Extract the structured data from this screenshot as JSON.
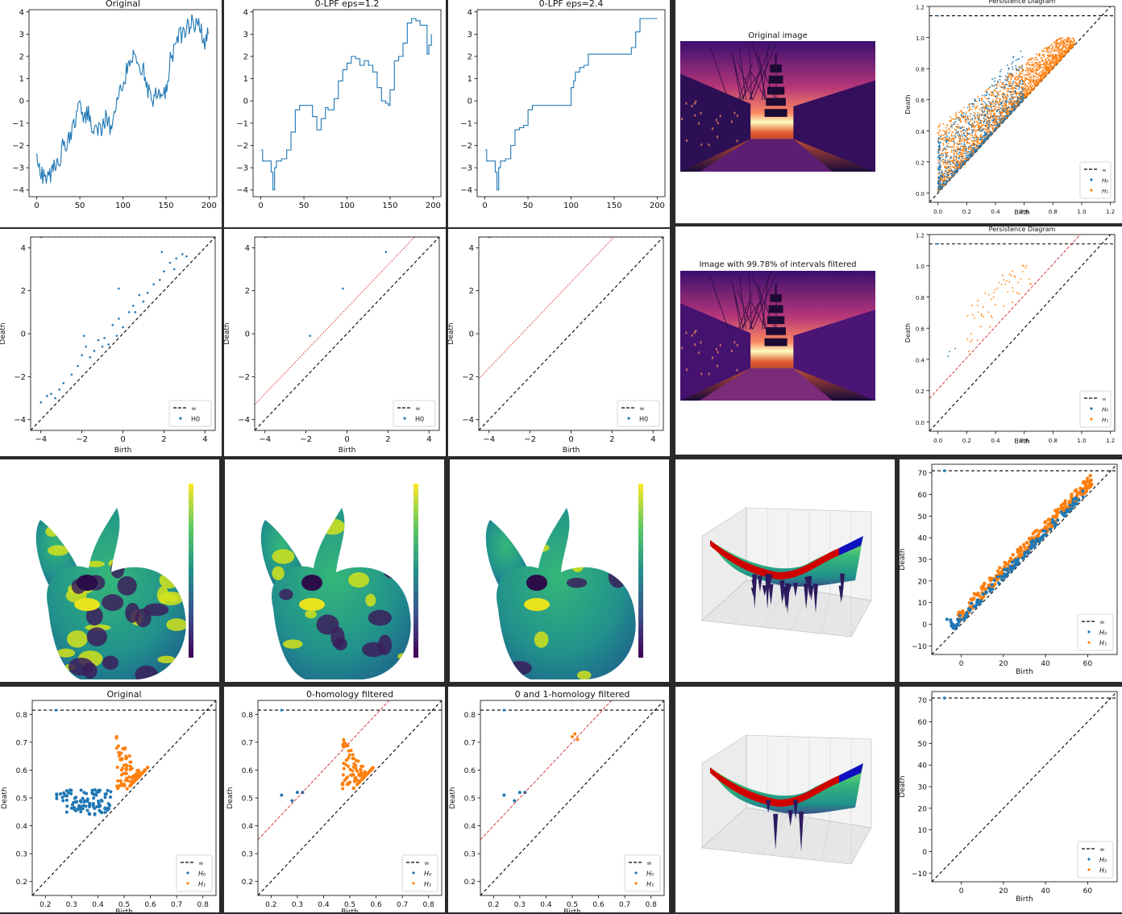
{
  "chart_data": [
    {
      "id": "ts-original",
      "type": "line",
      "title": "Original",
      "xlim": [
        -9,
        209
      ],
      "ylim": [
        -4.3,
        4.1
      ],
      "xticks": [
        "0",
        "50",
        "100",
        "150",
        "200"
      ],
      "yticks": [
        "4",
        "3",
        "2",
        "1",
        "0",
        "−1",
        "−2",
        "−3",
        "−4"
      ],
      "series": [
        {
          "x": [
            0,
            5,
            10,
            15,
            20,
            25,
            30,
            35,
            40,
            45,
            50,
            55,
            60,
            65,
            70,
            75,
            80,
            85,
            90,
            95,
            100,
            105,
            110,
            115,
            120,
            125,
            130,
            135,
            140,
            145,
            150,
            155,
            160,
            165,
            170,
            175,
            180,
            185,
            190,
            195,
            199
          ],
          "y": [
            -2.5,
            -3.2,
            -3.6,
            -3.4,
            -3.0,
            -2.8,
            -2.1,
            -1.9,
            -1.6,
            -0.9,
            -0.3,
            -0.8,
            -0.6,
            -1.1,
            -1.2,
            -1.4,
            -0.8,
            -1.2,
            -0.7,
            0.4,
            0.8,
            1.5,
            1.9,
            2.1,
            1.6,
            1.2,
            0.4,
            0.1,
            0.3,
            -0.2,
            0.5,
            1.8,
            2.2,
            2.8,
            3.1,
            3.3,
            3.6,
            3.5,
            3.4,
            2.6,
            3.0
          ]
        }
      ]
    },
    {
      "id": "ts-lpf12",
      "type": "line",
      "title": "0-LPF eps=1.2",
      "xlim": [
        -9,
        209
      ],
      "ylim": [
        -4.3,
        4.1
      ],
      "xticks": [
        "0",
        "50",
        "100",
        "150",
        "200"
      ],
      "yticks": [
        "4",
        "3",
        "2",
        "1",
        "0",
        "−1",
        "−2",
        "−3",
        "−4"
      ],
      "series": [
        {
          "x": [
            0,
            2,
            3,
            10,
            12,
            14,
            16,
            18,
            24,
            26,
            30,
            35,
            40,
            45,
            50,
            55,
            60,
            65,
            70,
            75,
            78,
            80,
            85,
            90,
            95,
            100,
            105,
            110,
            115,
            120,
            125,
            130,
            135,
            140,
            145,
            148,
            150,
            155,
            160,
            165,
            170,
            175,
            180,
            185,
            190,
            193,
            195,
            198
          ],
          "y": [
            -2.2,
            -2.7,
            -2.7,
            -2.7,
            -3.2,
            -4.0,
            -3.0,
            -2.7,
            -2.6,
            -2.6,
            -2.2,
            -1.4,
            -0.4,
            -0.2,
            -0.2,
            -0.2,
            -0.7,
            -1.3,
            -0.8,
            -0.3,
            -0.4,
            -0.4,
            0.1,
            0.9,
            1.4,
            1.7,
            2.0,
            1.9,
            1.6,
            1.8,
            1.6,
            1.3,
            0.6,
            0.0,
            -0.1,
            -0.2,
            0.5,
            1.8,
            2.0,
            2.6,
            3.5,
            3.7,
            3.6,
            3.4,
            3.4,
            2.1,
            2.5,
            3.0
          ]
        }
      ]
    },
    {
      "id": "ts-lpf24",
      "type": "line",
      "title": "0-LPF eps=2.4",
      "xlim": [
        -9,
        209
      ],
      "ylim": [
        -4.3,
        4.1
      ],
      "xticks": [
        "0",
        "50",
        "100",
        "150",
        "200"
      ],
      "yticks": [
        "4",
        "3",
        "2",
        "1",
        "0",
        "−1",
        "−2",
        "−3",
        "−4"
      ],
      "series": [
        {
          "x": [
            0,
            2,
            3,
            10,
            12,
            14,
            16,
            18,
            24,
            26,
            30,
            35,
            40,
            45,
            48,
            50,
            55,
            60,
            65,
            70,
            75,
            80,
            85,
            90,
            95,
            100,
            103,
            105,
            110,
            115,
            120,
            125,
            130,
            135,
            140,
            150,
            160,
            165,
            168,
            170,
            175,
            180,
            185,
            190,
            195,
            200
          ],
          "y": [
            -2.2,
            -2.7,
            -2.7,
            -2.7,
            -3.2,
            -4.0,
            -3.0,
            -2.7,
            -2.6,
            -2.6,
            -2.0,
            -1.3,
            -1.2,
            -1.1,
            -1.1,
            -0.4,
            -0.2,
            -0.2,
            -0.2,
            -0.2,
            -0.2,
            -0.2,
            -0.2,
            -0.2,
            -0.2,
            0.6,
            0.9,
            1.3,
            1.5,
            1.6,
            2.1,
            2.1,
            2.1,
            2.1,
            2.1,
            2.1,
            2.1,
            2.1,
            2.1,
            2.4,
            3.1,
            3.7,
            3.7,
            3.7,
            3.7,
            3.7
          ]
        }
      ]
    },
    {
      "id": "pd-original",
      "type": "scatter",
      "xlabel": "Birth",
      "ylabel": "Death",
      "xlim": [
        -4.5,
        4.5
      ],
      "ylim": [
        -4.5,
        4.5
      ],
      "xticks": [
        "−4",
        "−2",
        "0",
        "2",
        "4"
      ],
      "yticks": [
        "4",
        "2",
        "0",
        "−2",
        "−4"
      ],
      "legend": [
        "∞",
        "H0"
      ],
      "infinity": 4.5,
      "series": [
        {
          "name": "H0",
          "x": [
            -4.0,
            -3.7,
            -3.5,
            -3.3,
            -3.1,
            -2.9,
            -2.5,
            -2.2,
            -2.0,
            -1.8,
            -1.6,
            -1.4,
            -1.2,
            -1.0,
            -0.9,
            -0.7,
            -0.5,
            -0.3,
            -0.2,
            0.0,
            0.3,
            0.5,
            0.8,
            1.0,
            1.2,
            1.5,
            1.8,
            2.0,
            2.3,
            2.6,
            2.9,
            3.1,
            -1.9,
            -0.2,
            0.6,
            1.9,
            2.5
          ],
          "y": [
            -3.2,
            -2.9,
            -2.8,
            -3.0,
            -2.6,
            -2.3,
            -1.9,
            -1.5,
            -1.0,
            -0.6,
            -1.1,
            -0.8,
            -0.3,
            -0.6,
            -0.2,
            -0.5,
            0.4,
            -0.1,
            0.7,
            0.3,
            1.0,
            1.3,
            1.8,
            1.5,
            1.9,
            2.3,
            2.5,
            2.9,
            3.3,
            3.5,
            3.7,
            3.6,
            -0.1,
            2.1,
            1.0,
            3.8,
            3.0
          ]
        }
      ]
    },
    {
      "id": "pd-lpf12",
      "type": "scatter",
      "xlabel": "Birth",
      "ylabel": "Death",
      "xlim": [
        -4.5,
        4.5
      ],
      "ylim": [
        -4.5,
        4.5
      ],
      "xticks": [
        "−4",
        "−2",
        "0",
        "2",
        "4"
      ],
      "yticks": [
        "4",
        "2",
        "0",
        "−2",
        "−4"
      ],
      "legend": [
        "∞",
        "H0"
      ],
      "infinity": 4.5,
      "eps": 1.2,
      "series": [
        {
          "name": "H0",
          "x": [
            -1.8,
            -0.2,
            1.9
          ],
          "y": [
            -0.1,
            2.1,
            3.8
          ]
        }
      ]
    },
    {
      "id": "pd-lpf24",
      "type": "scatter",
      "xlabel": "Birth",
      "ylabel": "Death",
      "xlim": [
        -4.5,
        4.5
      ],
      "ylim": [
        -4.5,
        4.5
      ],
      "xticks": [
        "−4",
        "−2",
        "0",
        "2",
        "4"
      ],
      "yticks": [
        "4",
        "2",
        "0",
        "−2",
        "−4"
      ],
      "legend": [
        "∞",
        "H0"
      ],
      "infinity": 4.5,
      "eps": 2.4,
      "series": [
        {
          "name": "H0",
          "x": [],
          "y": []
        }
      ]
    },
    {
      "id": "img-pd-original",
      "type": "scatter",
      "title": "Persistence Diagram",
      "xlabel": "Birth",
      "ylabel": "Death",
      "xlim": [
        -0.06,
        1.23
      ],
      "ylim": [
        -0.06,
        1.2
      ],
      "xticks": [
        "0.0",
        "0.2",
        "0.4",
        "0.6",
        "0.8",
        "1.0",
        "1.2"
      ],
      "yticks": [
        "1.2",
        "1.0",
        "0.8",
        "0.6",
        "0.4",
        "0.2",
        "0.0"
      ],
      "legend": [
        "∞",
        "H₀",
        "H₁"
      ],
      "infinity": 1.14
    },
    {
      "id": "img-pd-filtered",
      "type": "scatter",
      "title": "Persistence Diagram",
      "xlabel": "Birth",
      "ylabel": "Death",
      "xlim": [
        -0.06,
        1.23
      ],
      "ylim": [
        -0.06,
        1.2
      ],
      "xticks": [
        "0.0",
        "0.2",
        "0.4",
        "0.6",
        "0.8",
        "1.0",
        "1.2"
      ],
      "yticks": [
        "1.2",
        "1.0",
        "0.8",
        "0.6",
        "0.4",
        "0.2",
        "0.0"
      ],
      "legend": [
        "∞",
        "H₀",
        "H₁"
      ],
      "infinity": 1.14
    },
    {
      "id": "surf-pd-original",
      "type": "scatter",
      "xlabel": "Birth",
      "ylabel": "Death",
      "xlim": [
        -14,
        74
      ],
      "ylim": [
        -14,
        74
      ],
      "xticks": [
        "0",
        "20",
        "40",
        "60"
      ],
      "yticks": [
        "70",
        "60",
        "50",
        "40",
        "30",
        "20",
        "10",
        "0",
        "−10"
      ],
      "legend": [
        "∞",
        "H₀",
        "H₁"
      ],
      "infinity": 71
    },
    {
      "id": "surf-pd-filtered",
      "type": "scatter",
      "xlabel": "Birth",
      "ylabel": "Death",
      "xlim": [
        -14,
        74
      ],
      "ylim": [
        -14,
        74
      ],
      "xticks": [
        "0",
        "20",
        "40",
        "60"
      ],
      "yticks": [
        "70",
        "60",
        "50",
        "40",
        "30",
        "20",
        "10",
        "0",
        "−10"
      ],
      "legend": [
        "∞",
        "H₀",
        "H₁"
      ],
      "infinity": 71
    },
    {
      "id": "bunny-pd-original",
      "type": "scatter",
      "title": "Original",
      "xlabel": "Birth",
      "ylabel": "Death",
      "xlim": [
        0.15,
        0.85
      ],
      "ylim": [
        0.15,
        0.85
      ],
      "xticks": [
        "0.2",
        "0.3",
        "0.4",
        "0.5",
        "0.6",
        "0.7",
        "0.8"
      ],
      "yticks": [
        "0.8",
        "0.7",
        "0.6",
        "0.5",
        "0.4",
        "0.3",
        "0.2"
      ],
      "legend": [
        "∞",
        "H₀",
        "H₁"
      ],
      "infinity": 0.815
    },
    {
      "id": "bunny-pd-h0",
      "type": "scatter",
      "title": "0-homology filtered",
      "xlabel": "Birth",
      "ylabel": "Death",
      "xlim": [
        0.15,
        0.85
      ],
      "ylim": [
        0.15,
        0.85
      ],
      "xticks": [
        "0.2",
        "0.3",
        "0.4",
        "0.5",
        "0.6",
        "0.7",
        "0.8"
      ],
      "yticks": [
        "0.8",
        "0.7",
        "0.6",
        "0.5",
        "0.4",
        "0.3",
        "0.2"
      ],
      "legend": [
        "∞",
        "H₀",
        "H₁"
      ],
      "infinity": 0.815
    },
    {
      "id": "bunny-pd-h01",
      "type": "scatter",
      "title": "0 and 1-homology filtered",
      "xlabel": "Birth",
      "ylabel": "Death",
      "xlim": [
        0.15,
        0.85
      ],
      "ylim": [
        0.15,
        0.85
      ],
      "xticks": [
        "0.2",
        "0.3",
        "0.4",
        "0.5",
        "0.6",
        "0.7",
        "0.8"
      ],
      "yticks": [
        "0.8",
        "0.7",
        "0.6",
        "0.5",
        "0.4",
        "0.3",
        "0.2"
      ],
      "legend": [
        "∞",
        "H₀",
        "H₁"
      ],
      "infinity": 0.815
    }
  ],
  "images": {
    "original_title": "Original image",
    "filtered_title": "Image with 99.78% of intervals filtered"
  },
  "colors": {
    "h0": "#1f77b4",
    "h1": "#ff7f0e",
    "diag": "#000000",
    "filter": "#d62728",
    "panel_bg": "#ffffff",
    "divider": "#2a2a2a"
  },
  "icons": [
    "colorbar-icon",
    "bunny-mesh-icon",
    "surface-3d-icon",
    "photo-icon"
  ]
}
